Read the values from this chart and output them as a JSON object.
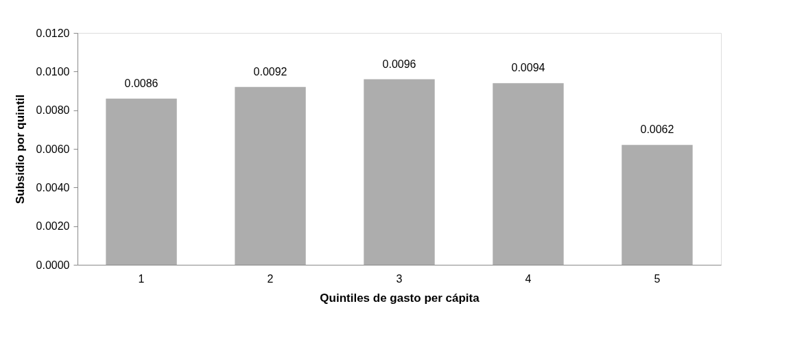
{
  "chart_data": {
    "type": "bar",
    "xlabel": "Quintiles de gasto per cápita",
    "ylabel": "Subsidio por quintil",
    "categories": [
      "1",
      "2",
      "3",
      "4",
      "5"
    ],
    "values": [
      0.0086,
      0.0092,
      0.0096,
      0.0094,
      0.0062
    ],
    "color": "#adadad",
    "ylim": [
      0,
      0.012
    ],
    "yticks": [
      {
        "value": 0,
        "label": "0.0000"
      },
      {
        "value": 0.002,
        "label": "0.0020"
      },
      {
        "value": 0.004,
        "label": "0.0040"
      },
      {
        "value": 0.006,
        "label": "0.0060"
      },
      {
        "value": 0.008,
        "label": "0.0080"
      },
      {
        "value": 0.01,
        "label": "0.0100"
      },
      {
        "value": 0.012,
        "label": "0.0120"
      }
    ],
    "data_labels": true,
    "grid": false
  }
}
